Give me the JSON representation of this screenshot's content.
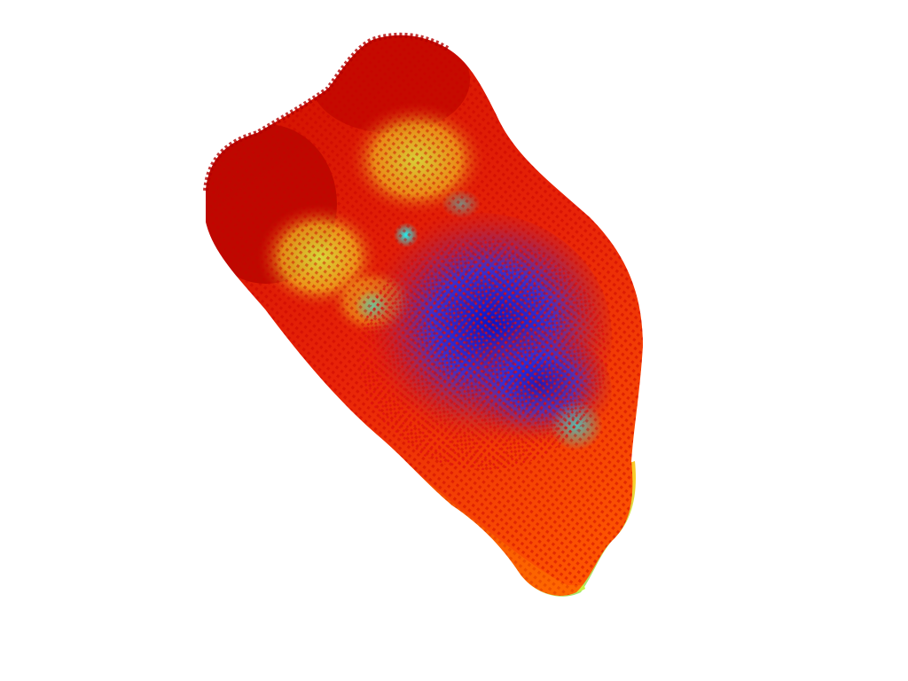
{
  "scene": {
    "background": "#ffffff",
    "object": "point-cloud-render",
    "colormap": {
      "low": "#0a1ad8",
      "mid_low": "#1fe6e6",
      "mid": "#c8f03a",
      "mid_high": "#ffb000",
      "high": "#e01808",
      "darkest": "#b00000"
    }
  }
}
